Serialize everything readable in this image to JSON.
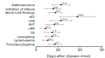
{
  "chart_data": {
    "type": "dot",
    "orientation": "horizontal",
    "categories": [
      "Defervescence",
      "Initiation of steroid",
      "Worst CXR findings",
      "ALT",
      "LDH",
      "AST",
      "CRP",
      "CK",
      "Leukopenia",
      "Lymphopenia",
      "Thrombocytopenia"
    ],
    "values": [
      11.5,
      8.0,
      9.0,
      19.0,
      11.5,
      8.5,
      4.5,
      7.5,
      7.5,
      5.5,
      8.7
    ],
    "value_labels": [
      "11.5",
      "8.0",
      "9.0",
      "19.0",
      "11.5",
      "8.5",
      "4.5",
      "7.5",
      "7.5",
      "5.5",
      "8.7"
    ],
    "errors": [
      4.0,
      3.5,
      3.0,
      8.0,
      5.0,
      4.0,
      2.5,
      3.5,
      3.0,
      2.5,
      3.0
    ],
    "data_labels": true,
    "xlabel": "Days after disease onset",
    "xlim": [
      0,
      30
    ],
    "xticks": [
      0,
      10,
      20,
      30
    ],
    "color": "#111111",
    "grid": false
  }
}
